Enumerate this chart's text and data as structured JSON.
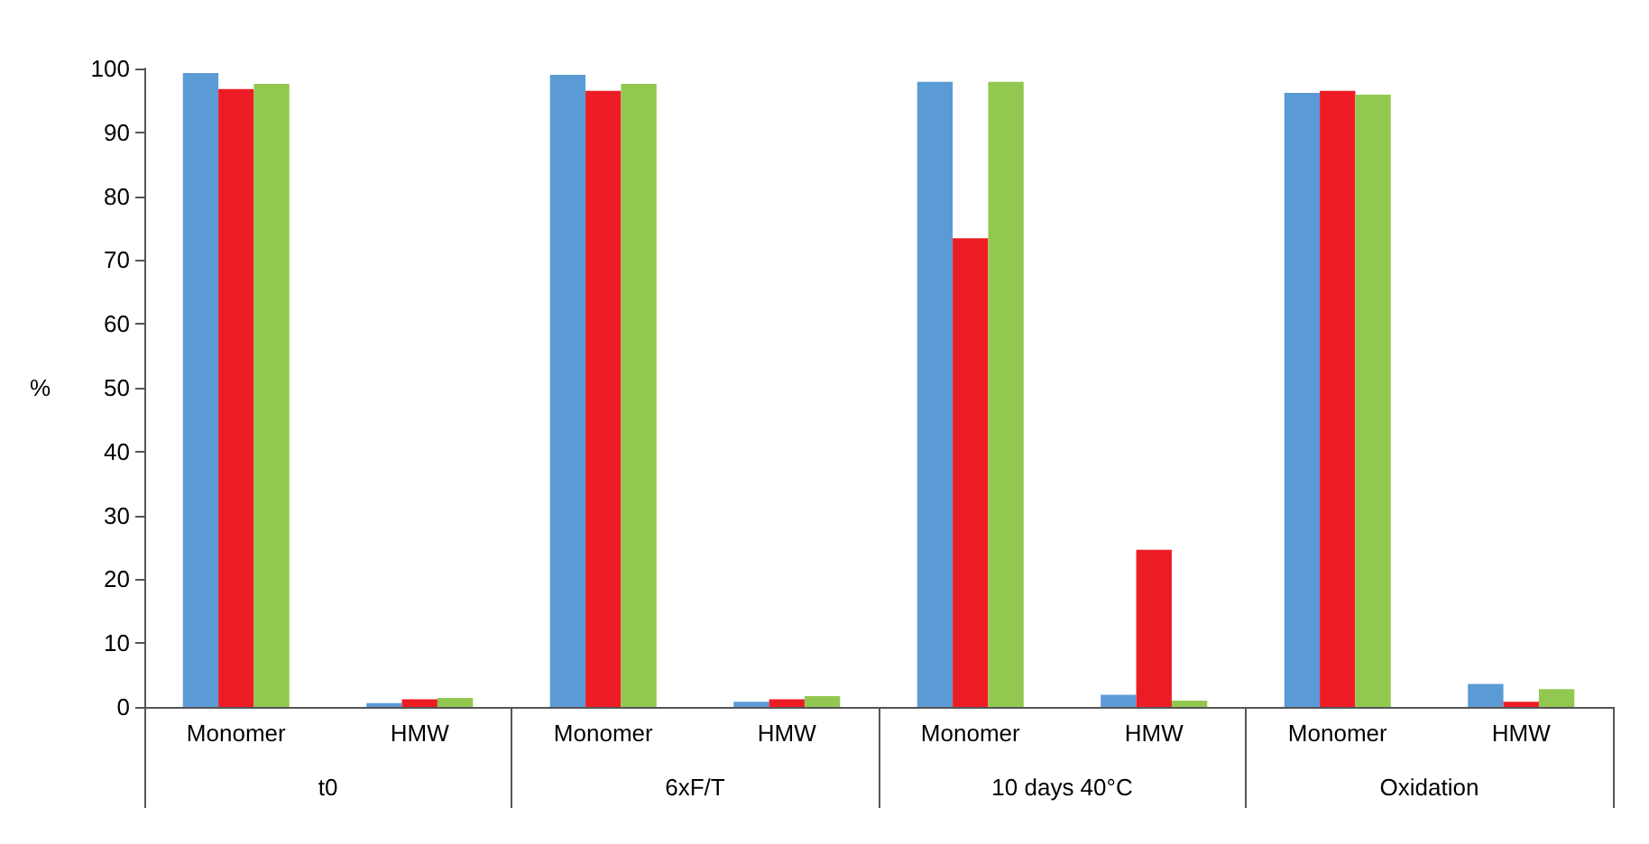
{
  "chart_data": {
    "type": "bar",
    "ylabel": "%",
    "categories": [
      "Monomer",
      "HMW",
      "Monomer",
      "HMW",
      "Monomer",
      "HMW",
      "Monomer",
      "HMW"
    ],
    "annotations": [
      "t0",
      "6xF/T",
      "10 days 40°C",
      "Oxidation"
    ],
    "series": [
      {
        "color": "#5b9bd5",
        "values": [
          99.3,
          0.6,
          99.0,
          0.8,
          97.9,
          1.9,
          96.2,
          3.6
        ]
      },
      {
        "color": "#ed1c24",
        "values": [
          96.8,
          1.2,
          96.5,
          1.2,
          73.4,
          24.6,
          96.5,
          0.8
        ]
      },
      {
        "color": "#92c850",
        "values": [
          97.6,
          1.4,
          97.6,
          1.7,
          97.9,
          1.0,
          95.9,
          2.8
        ]
      }
    ],
    "ylim": [
      0,
      100
    ],
    "yticks": [
      0,
      10,
      20,
      30,
      40,
      50,
      60,
      70,
      80,
      90,
      100
    ],
    "grid": false
  }
}
